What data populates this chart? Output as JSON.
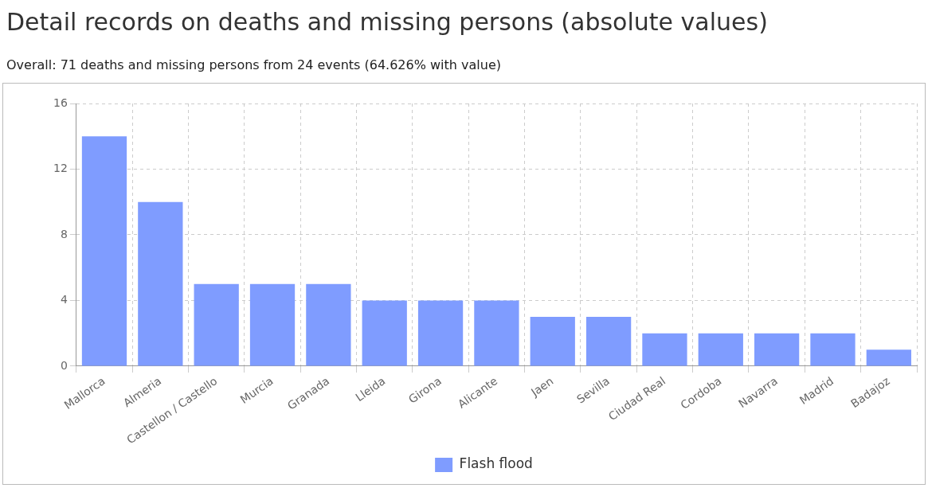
{
  "chart_data": {
    "type": "bar",
    "title": "Detail records on deaths and missing persons (absolute values)",
    "subtitle": "Overall: 71 deaths and missing persons from 24 events (64.626% with value)",
    "categories": [
      "Mallorca",
      "Almeria",
      "Castellon / Castello",
      "Murcia",
      "Granada",
      "Lleida",
      "Girona",
      "Alicante",
      "Jaen",
      "Sevilla",
      "Ciudad Real",
      "Cordoba",
      "Navarra",
      "Madrid",
      "Badajoz"
    ],
    "series": [
      {
        "name": "Flash flood",
        "color": "#7f9cff",
        "values": [
          14,
          10,
          5,
          5,
          5,
          4,
          4,
          4,
          3,
          3,
          2,
          2,
          2,
          2,
          1
        ]
      }
    ],
    "ylim": [
      0,
      16
    ],
    "yticks": [
      0,
      4,
      8,
      12,
      16
    ],
    "grid": true,
    "legend": "bottom"
  }
}
